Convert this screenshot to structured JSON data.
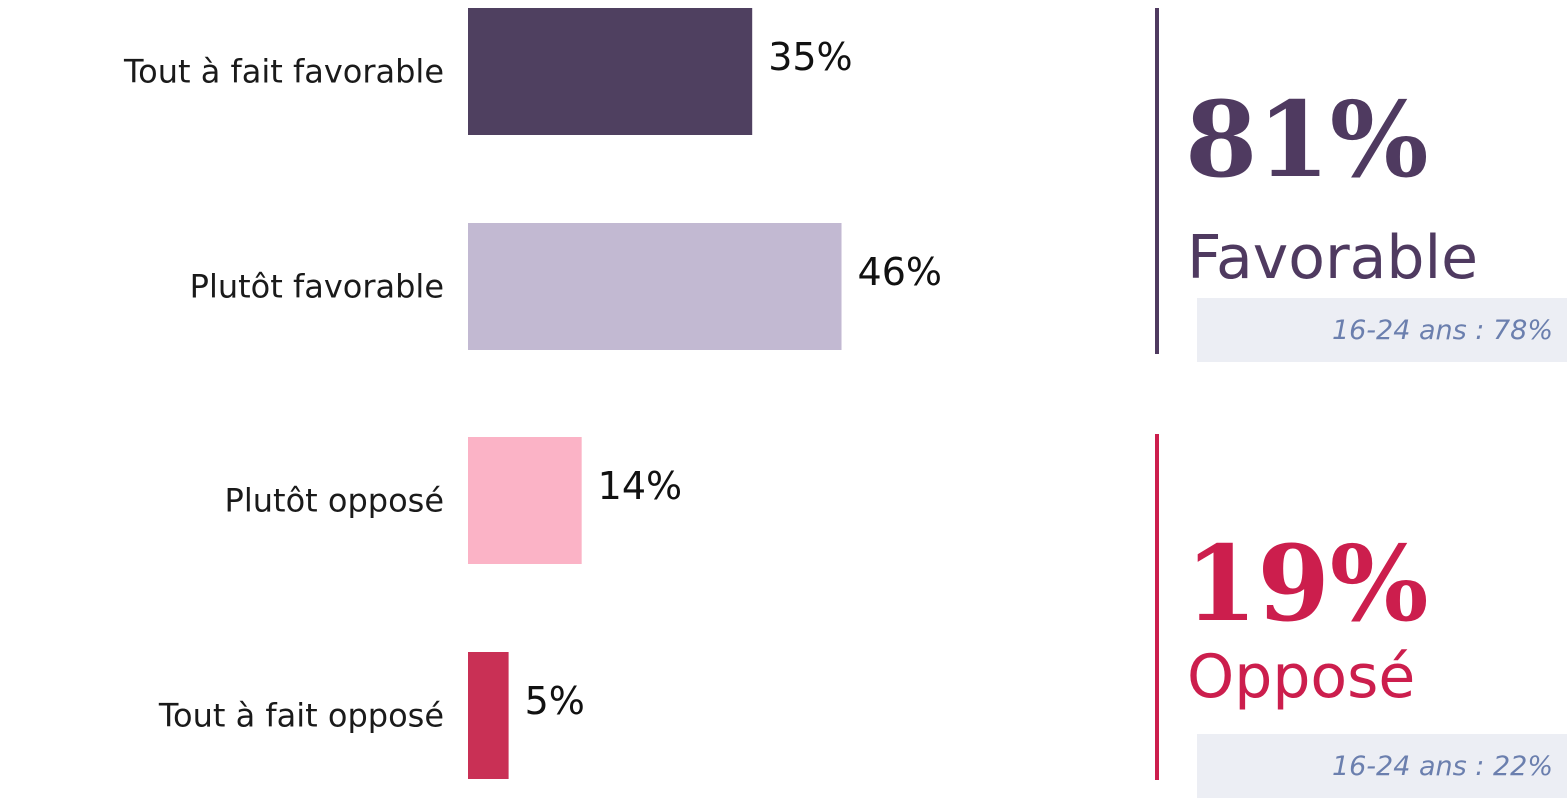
{
  "chart_data": {
    "type": "bar",
    "orientation": "horizontal",
    "categories": [
      "Tout à fait favorable",
      "Plutôt favorable",
      "Plutôt opposé",
      "Tout à fait opposé"
    ],
    "values": [
      35,
      46,
      14,
      5
    ],
    "value_labels": [
      "35%",
      "46%",
      "14%",
      "5%"
    ],
    "colors": [
      "#4f4060",
      "#c2b9d2",
      "#fbb3c6",
      "#c93055"
    ],
    "xlim": [
      0,
      100
    ],
    "grid": false
  },
  "summary": {
    "favorable": {
      "value": "81%",
      "label": "Favorable",
      "sub": "16-24 ans : 78%",
      "color": "#4f3a60"
    },
    "opposed": {
      "value": "19%",
      "label": "Opposé",
      "sub": "16-24 ans : 22%",
      "color": "#cc1e4d"
    }
  }
}
